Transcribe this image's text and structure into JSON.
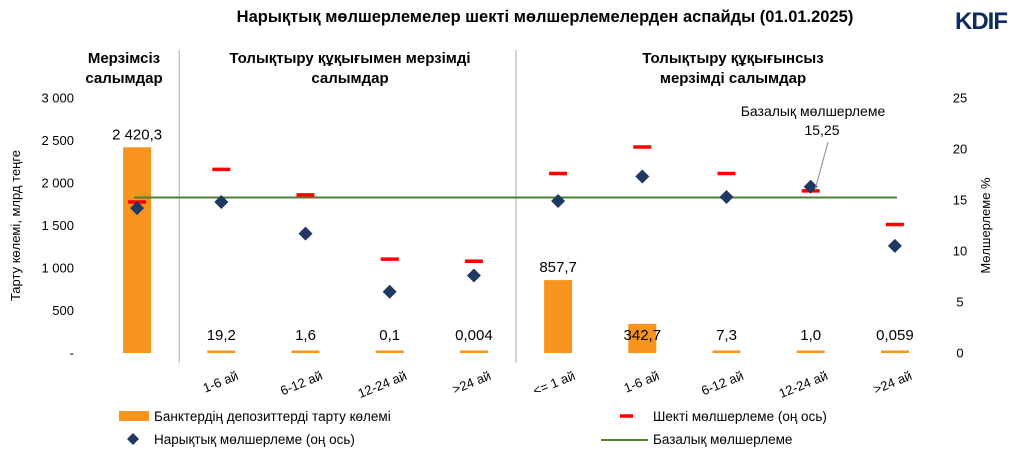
{
  "title": "Нарықтық мөлшерлемелер шекті мөлшерлемелерден аспайды (01.01.2025)",
  "logo": "KDIF",
  "groups": [
    {
      "label_lines": [
        "Мерзімсіз",
        "салымдар"
      ]
    },
    {
      "label_lines": [
        "Толықтыру құқығымен мерзімді",
        "салымдар"
      ]
    },
    {
      "label_lines": [
        "Толықтыру құқығынсыз",
        "мерзімді салымдар"
      ]
    }
  ],
  "annotation": {
    "lines": [
      "Базалық мөлшерлеме",
      "15,25"
    ]
  },
  "colors": {
    "bar": "#F7941D",
    "limit": "#FF0000",
    "market": "#1F3864",
    "base": "#4E7E34",
    "divider": "#9DB1C8"
  },
  "chart_data": {
    "type": "bar",
    "ylabel": "Тарту көлемі, млрд теңге",
    "y2label": "Мөлшерлеме %",
    "ylim": [
      0,
      3000
    ],
    "y2lim": [
      0,
      25
    ],
    "yticks": [
      "-",
      "500",
      "1 000",
      "1 500",
      "2 000",
      "2 500",
      "3 000"
    ],
    "y2ticks": [
      "0",
      "5",
      "10",
      "15",
      "20",
      "25"
    ],
    "categories": [
      "",
      "1-6 ай",
      "6-12 ай",
      "12-24 ай",
      ">24 ай",
      "<= 1 ай",
      "1-6 ай",
      "6-12 ай",
      "12-24 ай",
      ">24 ай"
    ],
    "series": [
      {
        "name": "Банктердің депозиттерді тарту көлемі",
        "type": "bar",
        "axis": "left",
        "values": [
          2420.3,
          19.2,
          1.6,
          0.1,
          0.004,
          857.7,
          342.7,
          7.3,
          1.0,
          0.059
        ],
        "labels": [
          "2 420,3",
          "19,2",
          "1,6",
          "0,1",
          "0,004",
          "857,7",
          "342,7",
          "7,3",
          "1,0",
          "0,059"
        ]
      },
      {
        "name": "Шекті мөлшерлеме (оң ось)",
        "type": "dash",
        "axis": "right",
        "values": [
          14.8,
          18.0,
          15.5,
          9.2,
          9.0,
          17.6,
          20.2,
          17.6,
          15.9,
          12.6
        ]
      },
      {
        "name": "Нарықтық мөлшерлеме (оң ось)",
        "type": "diamond",
        "axis": "right",
        "values": [
          14.2,
          14.8,
          11.7,
          6.0,
          7.6,
          14.9,
          17.3,
          15.3,
          16.3,
          10.5
        ]
      },
      {
        "name": "Базалық мөлшерлеме",
        "type": "line",
        "axis": "right",
        "value": 15.25
      }
    ],
    "legend_position": "bottom"
  }
}
